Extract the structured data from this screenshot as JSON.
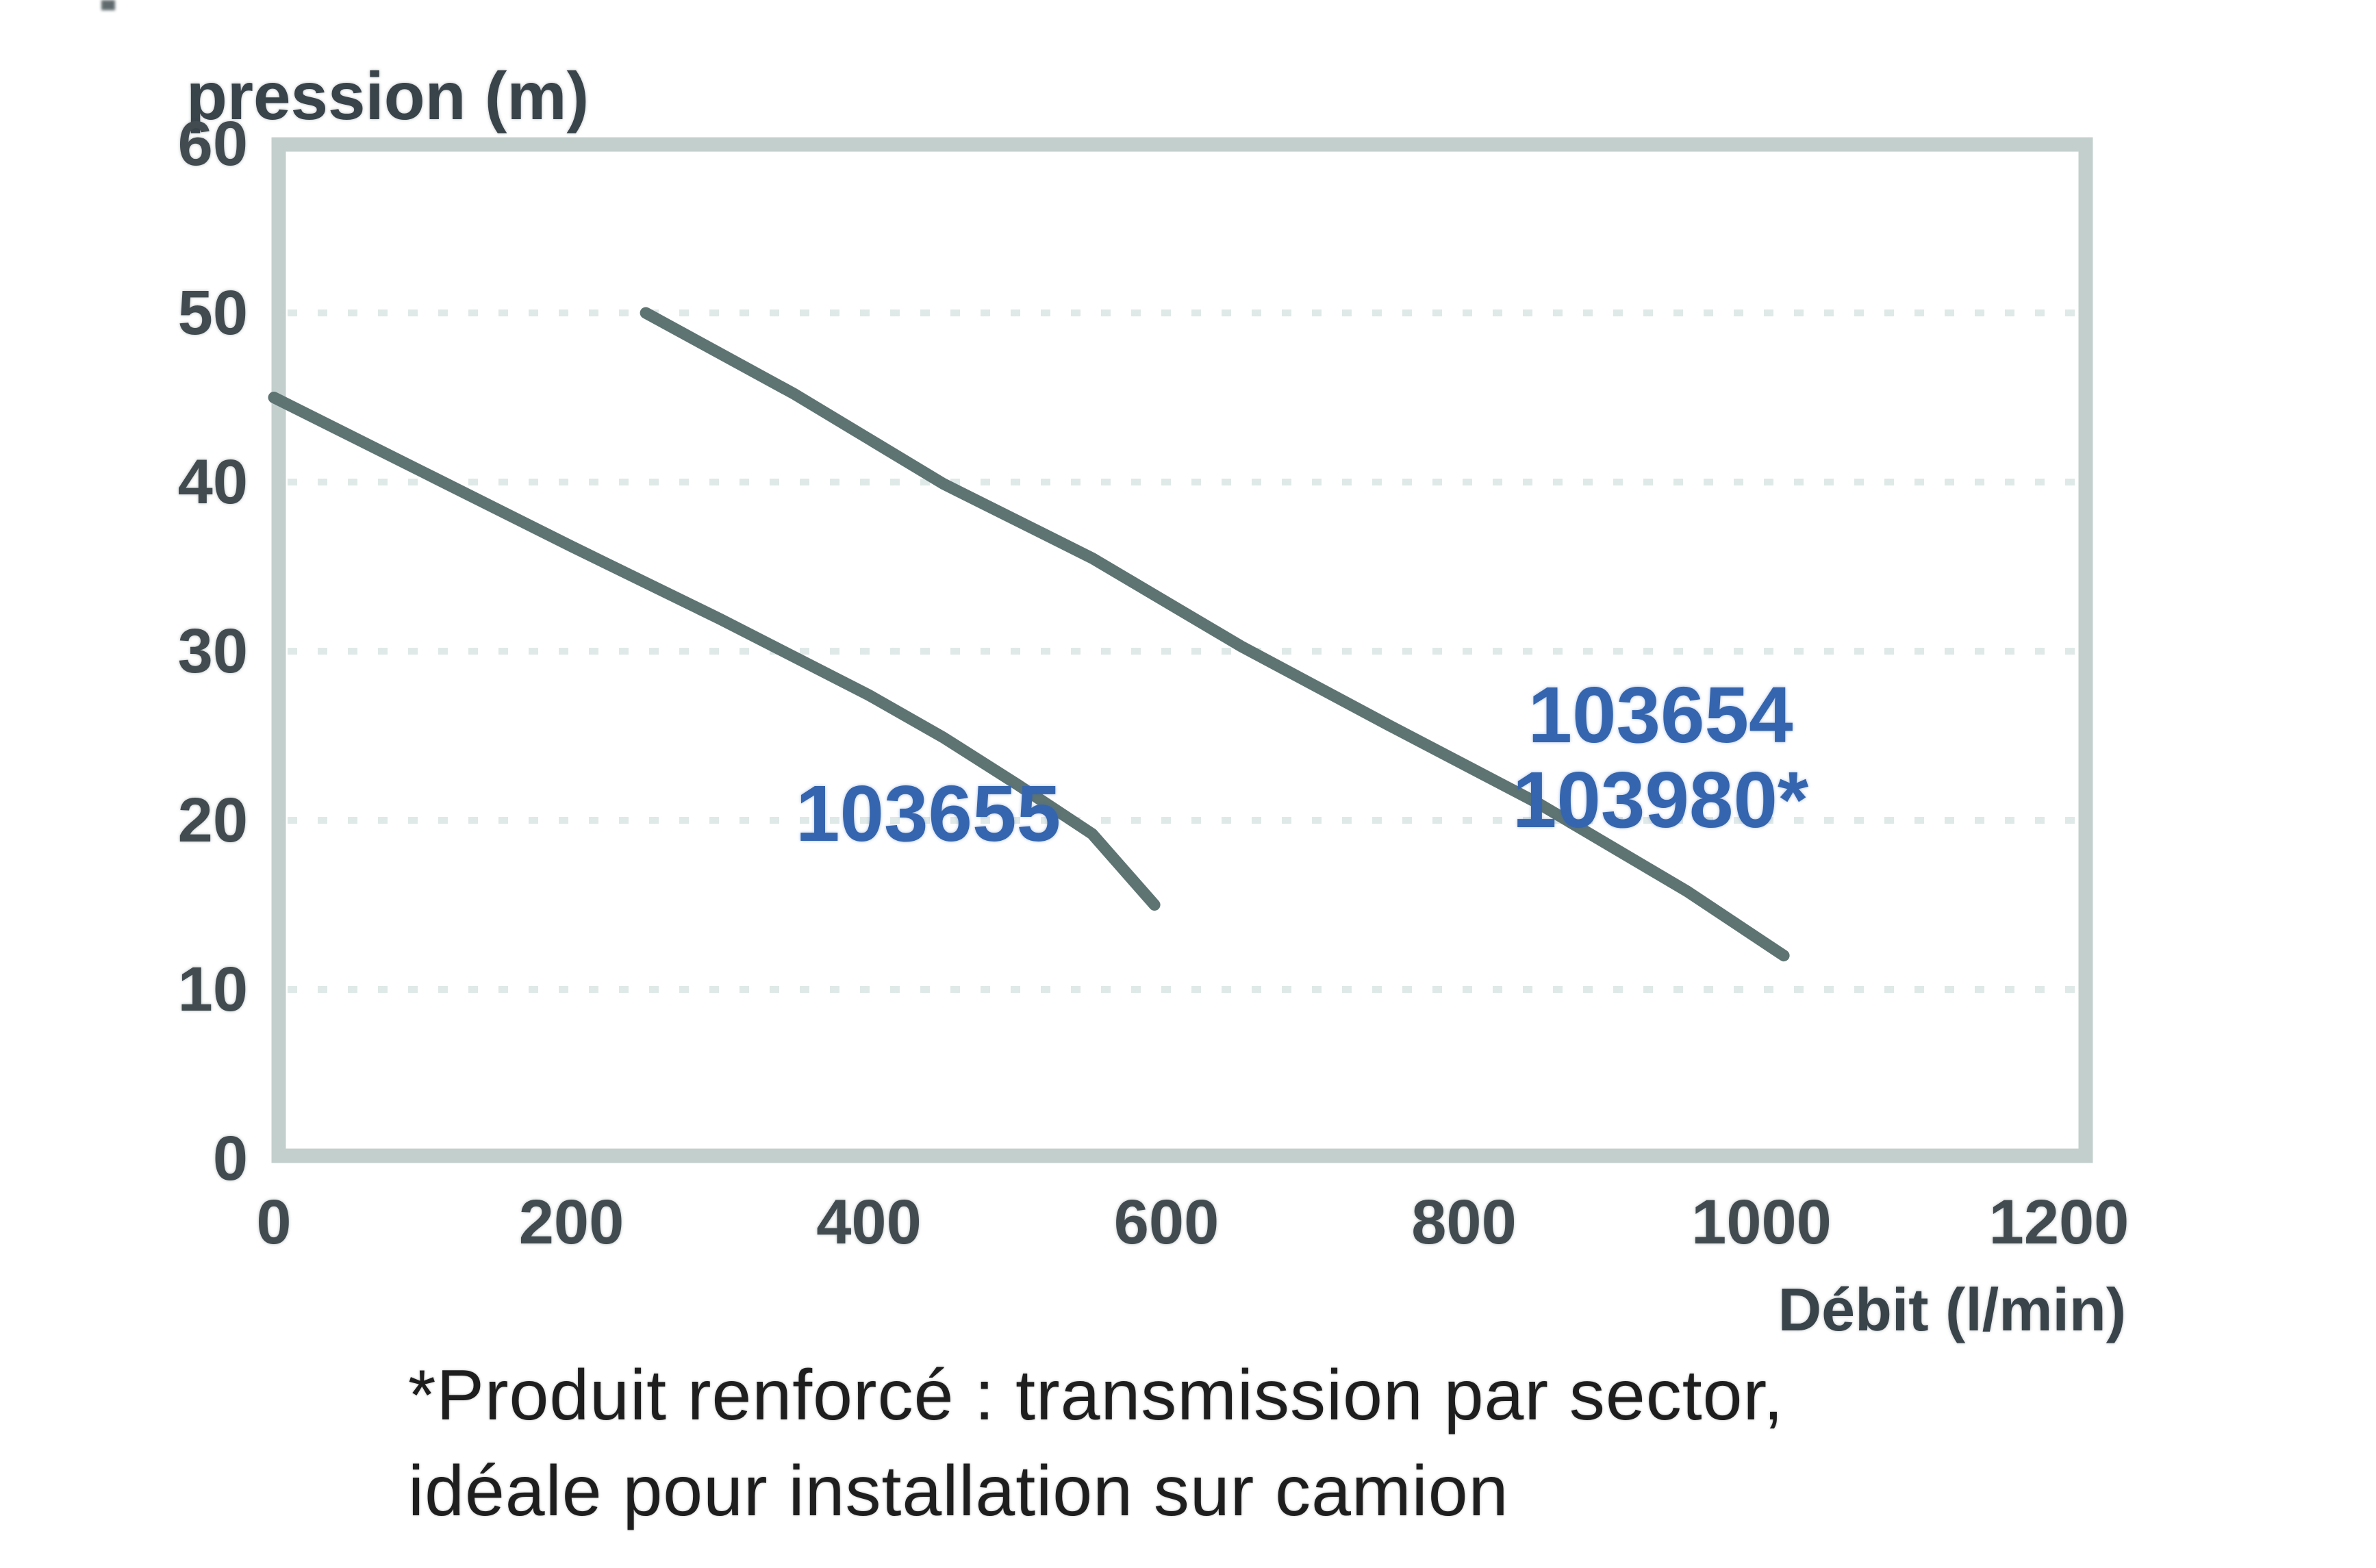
{
  "page": {
    "background": "#ffffff"
  },
  "chart_data": {
    "type": "line",
    "title": "",
    "ylabel": "pression (m)",
    "xlabel": "Débit (l/min)",
    "xlim": [
      0,
      1217
    ],
    "ylim": [
      0,
      60
    ],
    "x_ticks": [
      0,
      200,
      400,
      600,
      800,
      1000,
      1200
    ],
    "y_ticks": [
      60,
      50,
      40,
      30,
      20,
      10,
      0
    ],
    "grid": "horizontal dotted gridlines at y = 10,20,30,40,50",
    "legend_position": "inline blue labels next to curves",
    "series": [
      {
        "name": "103655",
        "label": "103655",
        "points": [
          [
            0,
            45
          ],
          [
            100,
            40.6
          ],
          [
            200,
            36.2
          ],
          [
            300,
            31.9
          ],
          [
            400,
            27.4
          ],
          [
            450,
            24.9
          ],
          [
            500,
            22.1
          ],
          [
            550,
            19.2
          ],
          [
            592,
            15
          ]
        ]
      },
      {
        "name": "103654 / 103980*",
        "label_lines": [
          "103654",
          "103980*"
        ],
        "points": [
          [
            250,
            50
          ],
          [
            350,
            45.2
          ],
          [
            450,
            39.9
          ],
          [
            550,
            35.5
          ],
          [
            650,
            30.3
          ],
          [
            750,
            25.6
          ],
          [
            850,
            21
          ],
          [
            950,
            15.8
          ],
          [
            1015,
            12
          ]
        ]
      }
    ]
  },
  "footnote": {
    "line1": "*Produit renforcé : transmission par sector,",
    "line2": "idéale pour installation sur camion"
  },
  "colors": {
    "curve": "#5e7472",
    "series_label_blue": "#3565ae",
    "plot_frame": "#c3cfcd",
    "gridline": "#dfe9e7",
    "tick_text": "#414b50",
    "footnote_text": "#1e1e1e"
  }
}
